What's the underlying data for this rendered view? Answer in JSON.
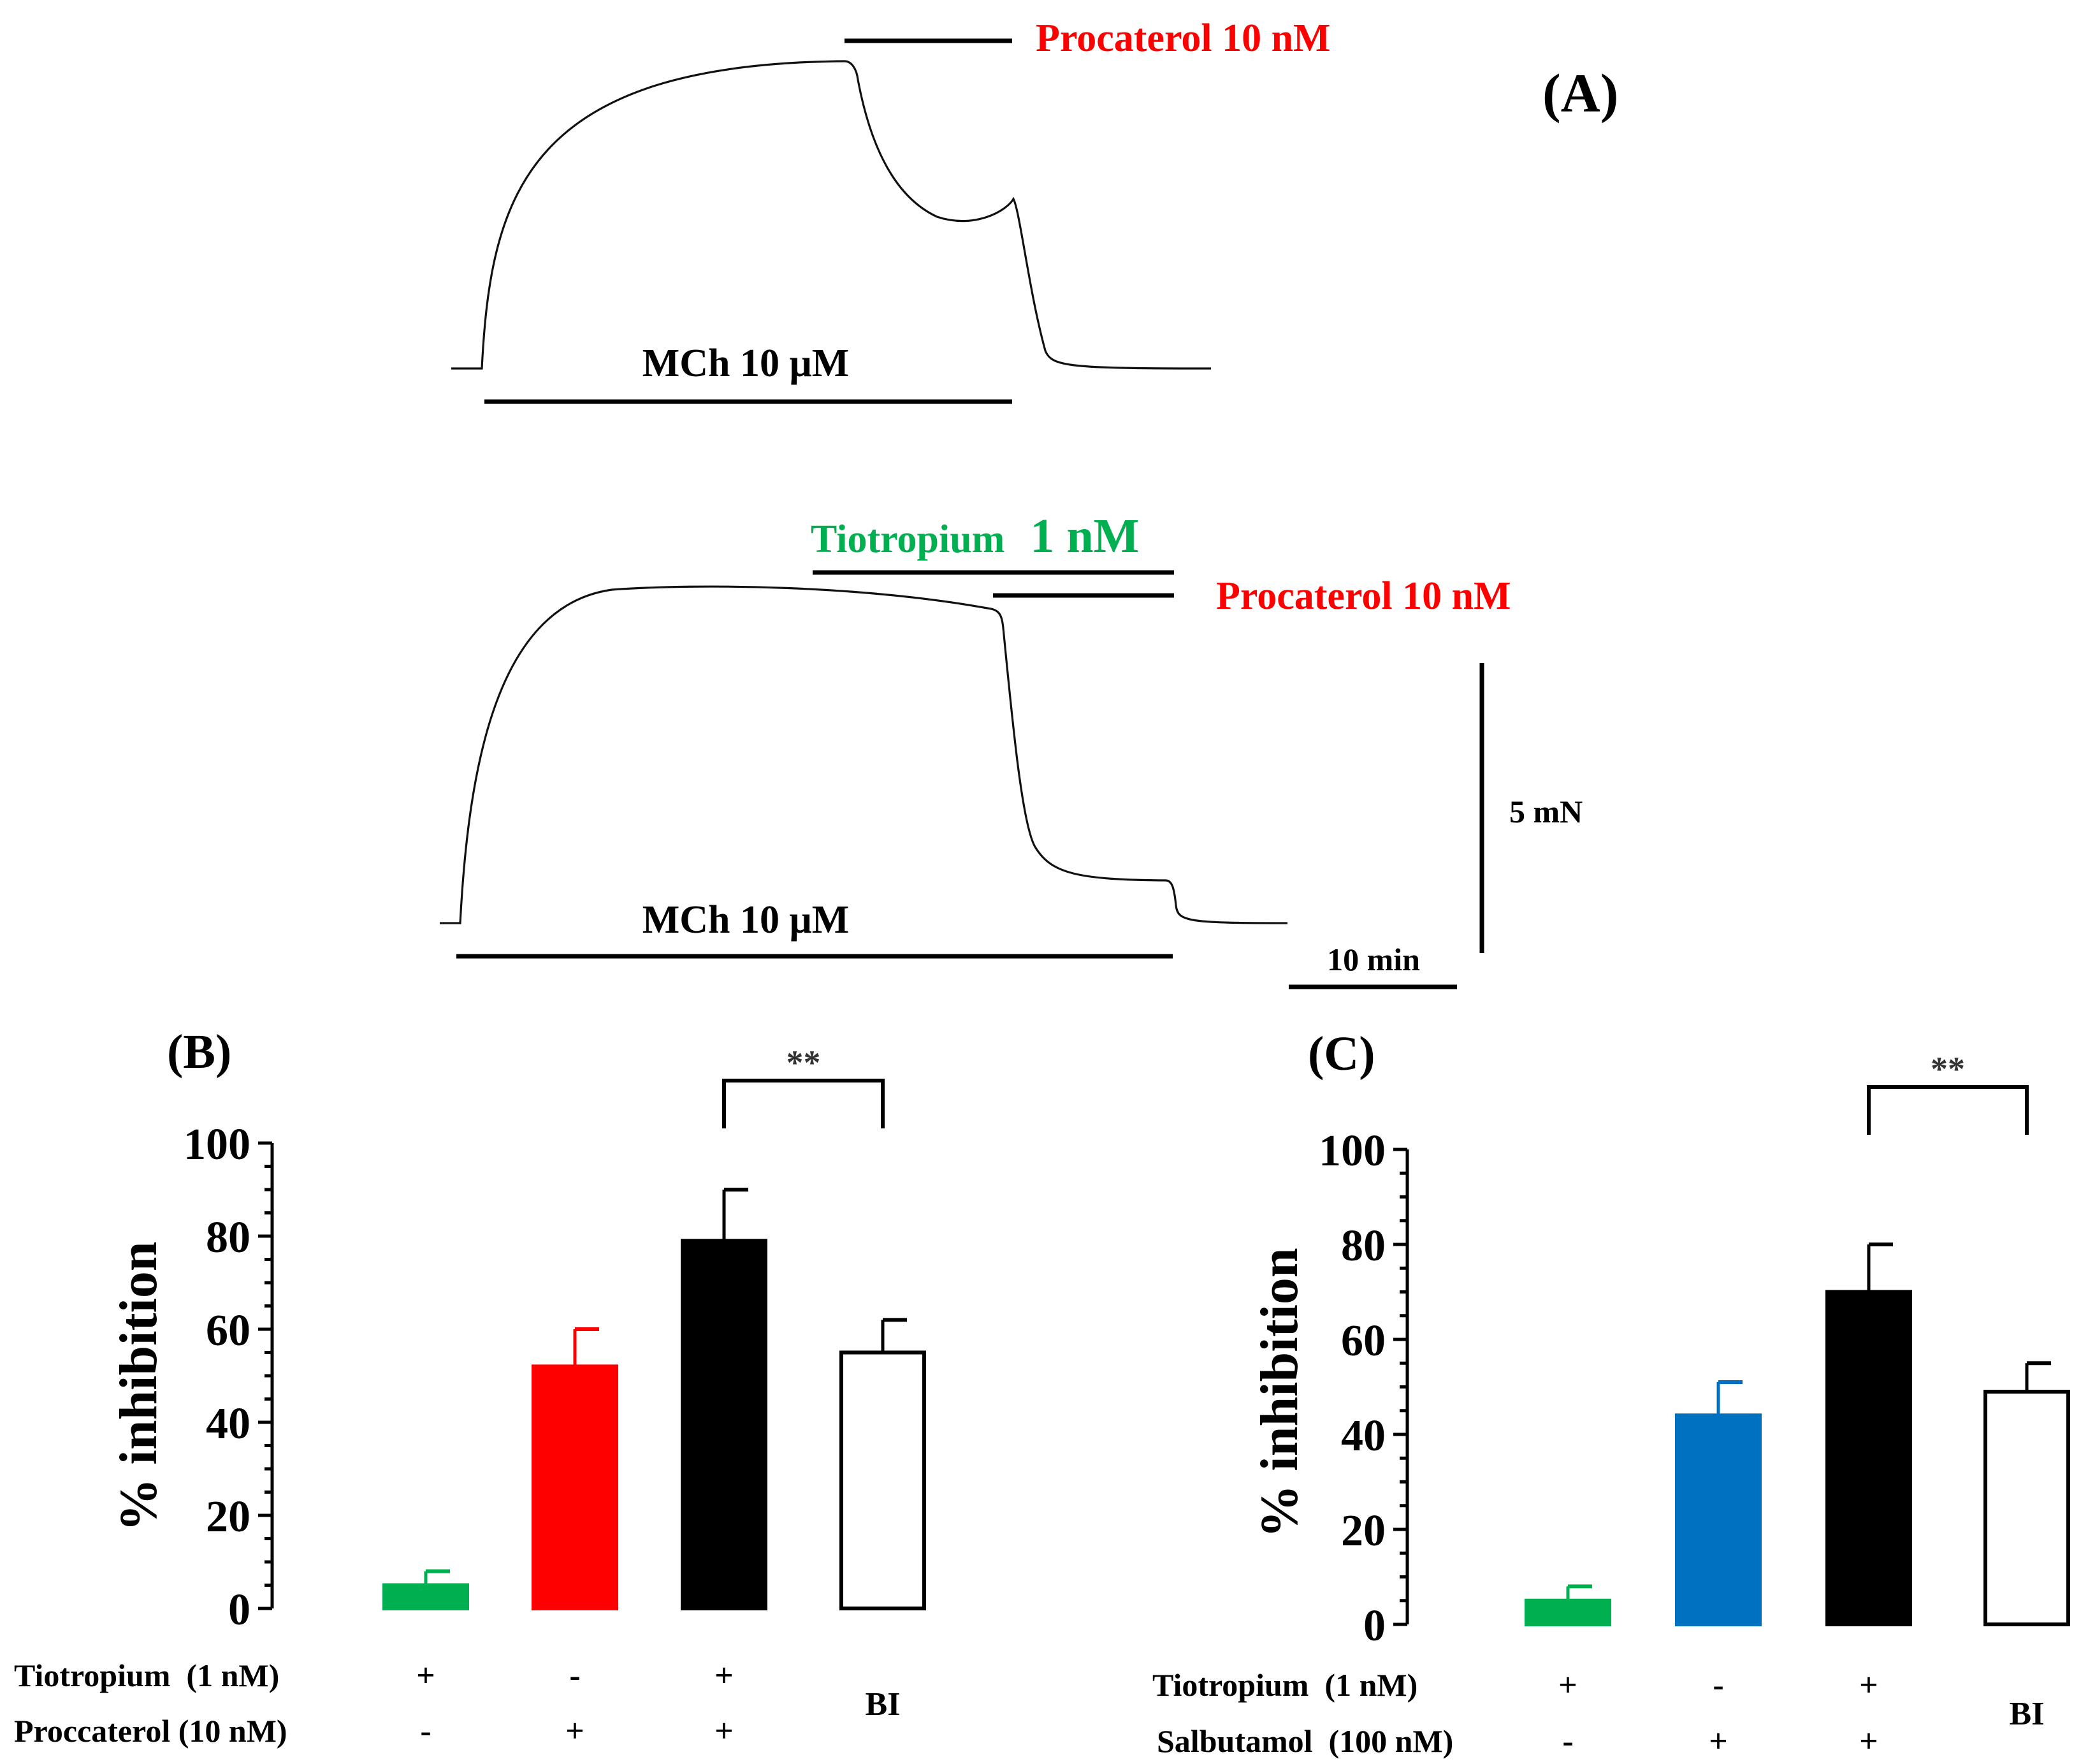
{
  "colors": {
    "tiotropium": "#00b050",
    "procaterol": "#ff0000",
    "salbutamol": "#0070c0",
    "combination": "#000000",
    "bi": "#ffffff",
    "label_red": "#ff0000",
    "label_green": "#00b050"
  },
  "panel_a": {
    "label": "(A)",
    "top_trace": {
      "mch_label": "MCh 10 μM",
      "procaterol_label": "Procaterol 10 nM"
    },
    "bottom_trace": {
      "mch_label": "MCh 10 μM",
      "tiotropium_label_name": "Tiotropium",
      "tiotropium_label_conc": "1 nM",
      "procaterol_label": "Procaterol 10 nM"
    },
    "scale_force": "5 mN",
    "scale_time": "10 min"
  },
  "chart_data": [
    {
      "panel": "(B)",
      "type": "bar",
      "ylabel": "% inhibition",
      "ylim": [
        0,
        100
      ],
      "yticks": [
        "0",
        "20",
        "40",
        "60",
        "80",
        "100"
      ],
      "values": [
        5,
        52,
        79,
        55
      ],
      "errors": [
        3,
        8,
        11,
        7
      ],
      "bar_colors": [
        "#00b050",
        "#ff0000",
        "#000000",
        "#ffffff"
      ],
      "condition_rows": [
        {
          "label": "Tiotropium  (1 nM)",
          "marks": [
            "+",
            "-",
            "+",
            ""
          ]
        },
        {
          "label": "Proccaterol (10 nM)",
          "marks": [
            "-",
            "+",
            "+",
            ""
          ]
        }
      ],
      "bi_label": "BI",
      "significance": {
        "between": [
          2,
          3
        ],
        "label": "**"
      }
    },
    {
      "panel": "(C)",
      "type": "bar",
      "ylabel": "% inhibition",
      "ylim": [
        0,
        100
      ],
      "yticks": [
        "0",
        "20",
        "40",
        "60",
        "80",
        "100"
      ],
      "values": [
        5,
        44,
        70,
        49
      ],
      "errors": [
        3,
        7,
        10,
        6
      ],
      "bar_colors": [
        "#00b050",
        "#0070c0",
        "#000000",
        "#ffffff"
      ],
      "condition_rows": [
        {
          "label": "Tiotropium  (1 nM)",
          "marks": [
            "+",
            "-",
            "+",
            ""
          ]
        },
        {
          "label": "Salbutamol  (100 nM)",
          "marks": [
            "-",
            "+",
            "+",
            ""
          ]
        }
      ],
      "bi_label": "BI",
      "significance": {
        "between": [
          2,
          3
        ],
        "label": "**"
      }
    }
  ]
}
